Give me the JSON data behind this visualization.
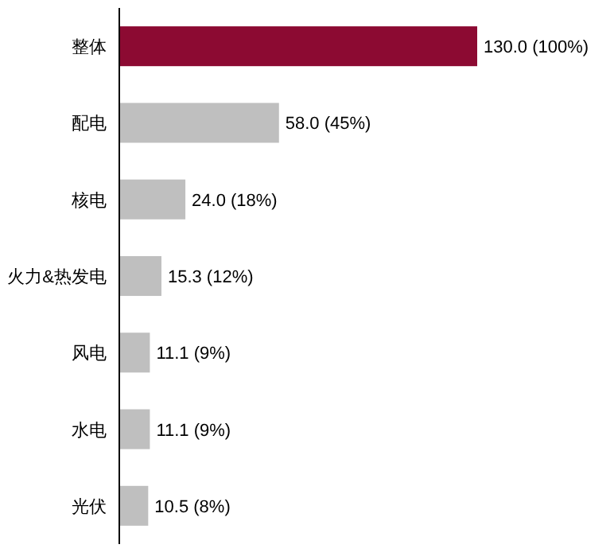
{
  "chart_data": {
    "type": "bar",
    "orientation": "horizontal",
    "categories": [
      "整体",
      "配电",
      "核电",
      "火力&热发电",
      "风电",
      "水电",
      "光伏"
    ],
    "values": [
      130.0,
      58.0,
      24.0,
      15.3,
      11.1,
      11.1,
      10.5
    ],
    "colors": [
      "#8c0a32",
      "#bfbfbf",
      "#bfbfbf",
      "#bfbfbf",
      "#bfbfbf",
      "#bfbfbf",
      "#bfbfbf"
    ],
    "value_labels": [
      "130.0 (100%)",
      "58.0 (45%)",
      "24.0 (18%)",
      "15.3 (12%)",
      "11.1 (9%)",
      "11.1 (9%)",
      "10.5 (8%)"
    ]
  }
}
